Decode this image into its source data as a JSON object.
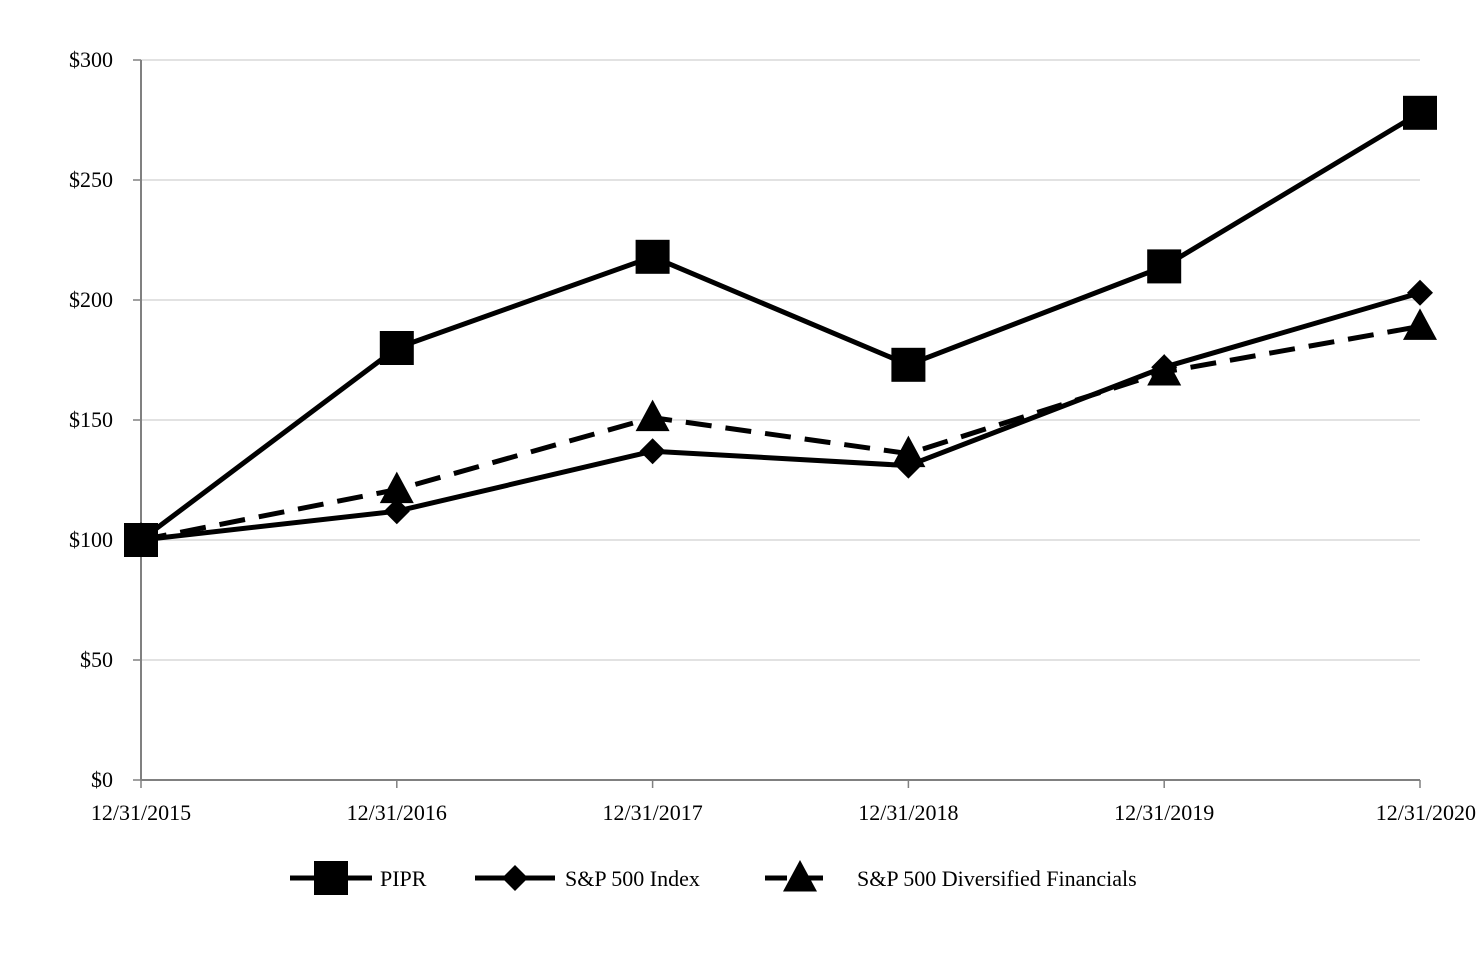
{
  "chart_data": {
    "type": "line",
    "title": "",
    "xlabel": "",
    "ylabel": "",
    "categories": [
      "12/31/2015",
      "12/31/2016",
      "12/31/2017",
      "12/31/2018",
      "12/31/2019",
      "12/31/2020"
    ],
    "ylim": [
      0,
      300
    ],
    "y_ticks": [
      0,
      50,
      100,
      150,
      200,
      250,
      300
    ],
    "y_tick_labels": [
      "$0",
      "$50",
      "$100",
      "$150",
      "$200",
      "$250",
      "$300"
    ],
    "grid": true,
    "legend_position": "bottom",
    "series": [
      {
        "name": "PIPR",
        "values": [
          100,
          180,
          218,
          173,
          214,
          278
        ],
        "marker": "square",
        "line_style": "solid",
        "color": "#000000"
      },
      {
        "name": "S&P 500 Index",
        "values": [
          100,
          112,
          137,
          131,
          172,
          203
        ],
        "marker": "diamond",
        "line_style": "solid",
        "color": "#000000"
      },
      {
        "name": "S&P 500 Diversified Financials",
        "values": [
          100,
          121,
          151,
          136,
          170,
          189
        ],
        "marker": "triangle",
        "line_style": "dashed",
        "color": "#000000"
      }
    ]
  }
}
